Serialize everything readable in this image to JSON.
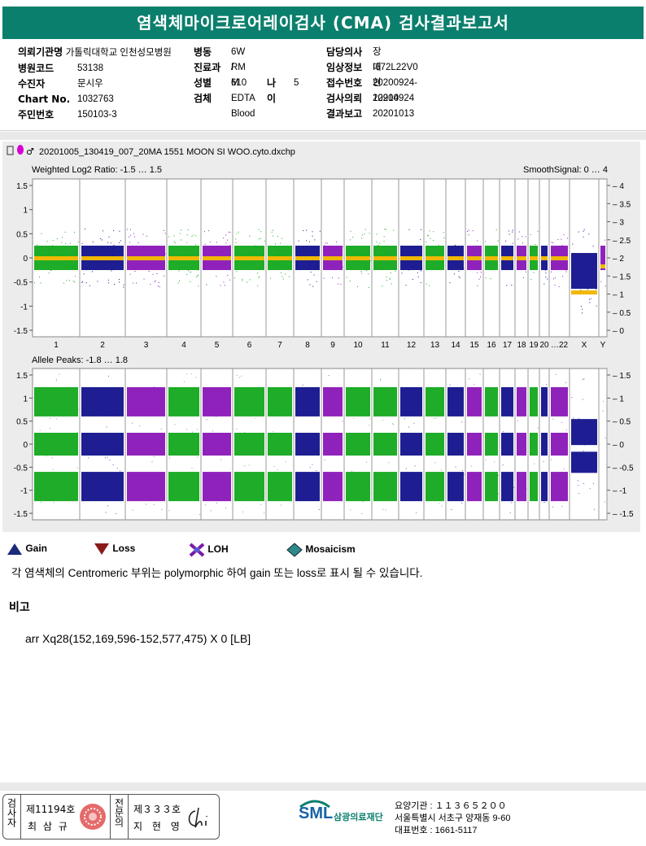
{
  "title": "염색체마이크로어레이검사 (CMA) 검사결과보고서",
  "info": {
    "left": [
      {
        "label": "의뢰기관명",
        "value": "가톨릭대학교 인천성모병원"
      },
      {
        "label": "병원코드",
        "value": "53138"
      },
      {
        "label": "수진자",
        "value": "문시우"
      },
      {
        "label": "Chart No.",
        "value": "1032763"
      },
      {
        "label": "주민번호",
        "value": "150103-3"
      }
    ],
    "mid": [
      {
        "label": "병동",
        "value": "6W / 610"
      },
      {
        "label": "진료과",
        "value": "RM"
      },
      {
        "label": "성별",
        "value": "M"
      },
      {
        "label": "검체",
        "value": "EDTA Blood"
      }
    ],
    "age": {
      "label": "나이",
      "value": "5"
    },
    "right": [
      {
        "label": "담당의사",
        "value": "장대현"
      },
      {
        "label": "임상정보",
        "value": "I672L22V0"
      },
      {
        "label": "접수번호",
        "value": "20200924-12914"
      },
      {
        "label": "검사의뢰",
        "value": "20200924"
      },
      {
        "label": "결과보고",
        "value": "20201013"
      }
    ]
  },
  "plot": {
    "filename": "20201005_130419_007_20MA 1551 MOON SI WOO.cyto.dxchp",
    "top_label": "Weighted Log2 Ratio: -1.5 … 1.5",
    "smooth_label": "SmoothSignal: 0 … 4",
    "bottom_label": "Allele Peaks: -1.8 … 1.8",
    "left_ticks_top": [
      "1.5",
      "1",
      "0.5",
      "0",
      "-0.5",
      "-1",
      "-1.5"
    ],
    "right_ticks_top": [
      "4",
      "3.5",
      "3",
      "2.5",
      "2",
      "1.5",
      "1",
      "0.5",
      "0"
    ],
    "left_ticks_bottom": [
      "1.5",
      "1",
      "0.5",
      "0",
      "-0.5",
      "-1",
      "-1.5"
    ],
    "right_ticks_bottom": [
      "1.5",
      "1",
      "0.5",
      "0",
      "-0.5",
      "-1",
      "-1.5"
    ],
    "chromosomes": [
      "1",
      "2",
      "3",
      "4",
      "5",
      "6",
      "7",
      "8",
      "9",
      "10",
      "11",
      "12",
      "13",
      "14",
      "15",
      "16",
      "17",
      "18",
      "19",
      "20",
      "…22",
      "X",
      "Y"
    ],
    "colors": {
      "green": "#12a81e",
      "blue": "#12128c",
      "purple": "#8a16b8",
      "orange": "#f0b800"
    }
  },
  "legend": [
    {
      "icon": "gain-triangle-icon",
      "label": "Gain"
    },
    {
      "icon": "loss-triangle-icon",
      "label": "Loss"
    },
    {
      "icon": "loh-cross-icon",
      "label": "LOH"
    },
    {
      "icon": "mosaicism-diamond-icon",
      "label": "Mosaicism"
    }
  ],
  "note": "각 염색체의 Centromeric 부위는 polymorphic 하여 gain 또는 loss로 표시 될 수 있습니다.",
  "remark_heading": "비고",
  "remark": "arr Xq28(152,169,596-152,577,475) X 0 [LB]",
  "footer": {
    "tester_vert": "검사자",
    "tester_no": "제11194호",
    "tester_name": "최 삼 규",
    "expert_vert": "전문의",
    "expert_no": "제３３３호",
    "expert_name": "지 현 영",
    "sml": "SML",
    "org_name": "삼광의료재단",
    "code_line": "요양기관 : １１３６５２００",
    "address": "서울특별시 서초구 양재동 9-60",
    "phone": "대표번호 : 1661-5117"
  }
}
